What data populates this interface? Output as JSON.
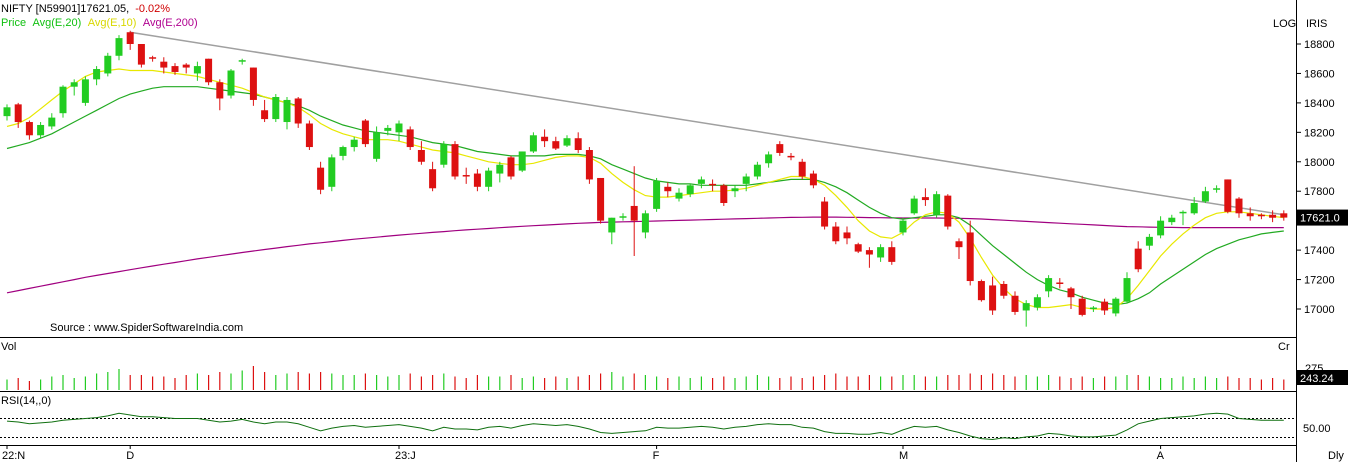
{
  "header": {
    "symbol": "NIFTY [N59901]",
    "last": "17621.05,",
    "change": "-0.02%",
    "legend": [
      {
        "label": "Price",
        "color": "#10c010"
      },
      {
        "label": "Avg(E,20)",
        "color": "#10c010"
      },
      {
        "label": "Avg(E,10)",
        "color": "#e8e800"
      },
      {
        "label": "Avg(E,200)",
        "color": "#b00090"
      }
    ],
    "log_label": "LOG",
    "iris_label": "IRIS"
  },
  "source": "Source : www.SpiderSoftwareIndia.com",
  "panels": {
    "vol_label": "Vol",
    "vol_unit": "Cr",
    "vol_value": "243.24",
    "vol_tick": "275",
    "rsi_label": "RSI(14,,0)",
    "rsi_tick": "50.00"
  },
  "price_axis": {
    "ticks": [
      "18800",
      "18600",
      "18400",
      "18200",
      "18000",
      "17800",
      "17621.0",
      "17400",
      "17200",
      "17000"
    ]
  },
  "x_axis": {
    "labels": [
      "22:N",
      "D",
      "23:J",
      "F",
      "M",
      "A"
    ],
    "period_label": "Dly"
  },
  "colors": {
    "up": "#22cc22",
    "down": "#dd1111",
    "ema20": "#22aa22",
    "ema10": "#e8e800",
    "ema200": "#a00080",
    "trendline": "#a0a0a0",
    "rsi": "#107010"
  },
  "chart_data": {
    "type": "candlestick",
    "ylim": [
      16850,
      18900
    ],
    "candles": [
      [
        18310,
        18390,
        18280,
        18370
      ],
      [
        18390,
        18400,
        18230,
        18270
      ],
      [
        18270,
        18280,
        18150,
        18180
      ],
      [
        18180,
        18270,
        18160,
        18250
      ],
      [
        18240,
        18330,
        18220,
        18300
      ],
      [
        18330,
        18520,
        18300,
        18510
      ],
      [
        18510,
        18560,
        18450,
        18540
      ],
      [
        18400,
        18580,
        18380,
        18560
      ],
      [
        18560,
        18650,
        18520,
        18630
      ],
      [
        18600,
        18740,
        18580,
        18720
      ],
      [
        18720,
        18860,
        18690,
        18840
      ],
      [
        18880,
        18890,
        18760,
        18800
      ],
      [
        18800,
        18800,
        18640,
        18660
      ],
      [
        18710,
        18720,
        18680,
        18700
      ],
      [
        18680,
        18710,
        18600,
        18640
      ],
      [
        18650,
        18670,
        18590,
        18610
      ],
      [
        18660,
        18670,
        18600,
        18640
      ],
      [
        18600,
        18680,
        18550,
        18650
      ],
      [
        18700,
        18700,
        18520,
        18540
      ],
      [
        18540,
        18560,
        18350,
        18430
      ],
      [
        18450,
        18630,
        18430,
        18620
      ],
      [
        18680,
        18700,
        18660,
        18690
      ],
      [
        18640,
        18640,
        18380,
        18420
      ],
      [
        18350,
        18420,
        18270,
        18290
      ],
      [
        18290,
        18460,
        18270,
        18440
      ],
      [
        18270,
        18440,
        18220,
        18420
      ],
      [
        18430,
        18440,
        18230,
        18260
      ],
      [
        18260,
        18280,
        18080,
        18100
      ],
      [
        17960,
        18000,
        17780,
        17810
      ],
      [
        17830,
        18050,
        17800,
        18030
      ],
      [
        18040,
        18110,
        18010,
        18100
      ],
      [
        18100,
        18170,
        18070,
        18150
      ],
      [
        18280,
        18290,
        18100,
        18120
      ],
      [
        18020,
        18240,
        18000,
        18200
      ],
      [
        18210,
        18250,
        18180,
        18230
      ],
      [
        18200,
        18280,
        18140,
        18260
      ],
      [
        18220,
        18240,
        18080,
        18100
      ],
      [
        18080,
        18140,
        17980,
        18000
      ],
      [
        17950,
        18000,
        17800,
        17820
      ],
      [
        17980,
        18140,
        17960,
        18120
      ],
      [
        18120,
        18140,
        17880,
        17900
      ],
      [
        17910,
        17960,
        17850,
        17900
      ],
      [
        17920,
        17950,
        17800,
        17830
      ],
      [
        17830,
        17960,
        17800,
        17940
      ],
      [
        17920,
        18000,
        17860,
        17980
      ],
      [
        18030,
        18040,
        17880,
        17900
      ],
      [
        17940,
        18070,
        17930,
        18070
      ],
      [
        18070,
        18200,
        18060,
        18180
      ],
      [
        18170,
        18220,
        18100,
        18140
      ],
      [
        18140,
        18170,
        18080,
        18090
      ],
      [
        18110,
        18180,
        18100,
        18160
      ],
      [
        18160,
        18200,
        18060,
        18080
      ],
      [
        18080,
        18100,
        17850,
        17880
      ],
      [
        17890,
        17890,
        17580,
        17600
      ],
      [
        17520,
        17620,
        17440,
        17620
      ],
      [
        17620,
        17650,
        17600,
        17630
      ],
      [
        17700,
        17970,
        17360,
        17600
      ],
      [
        17520,
        17670,
        17480,
        17650
      ],
      [
        17680,
        17890,
        17660,
        17870
      ],
      [
        17830,
        17860,
        17760,
        17800
      ],
      [
        17750,
        17820,
        17730,
        17790
      ],
      [
        17780,
        17850,
        17760,
        17840
      ],
      [
        17850,
        17900,
        17820,
        17880
      ],
      [
        17850,
        17880,
        17800,
        17840
      ],
      [
        17840,
        17850,
        17700,
        17720
      ],
      [
        17800,
        17840,
        17760,
        17820
      ],
      [
        17850,
        17920,
        17800,
        17900
      ],
      [
        17900,
        18000,
        17880,
        17980
      ],
      [
        17990,
        18070,
        17960,
        18050
      ],
      [
        18120,
        18140,
        18040,
        18060
      ],
      [
        18040,
        18060,
        18010,
        18030
      ],
      [
        18000,
        18020,
        17880,
        17900
      ],
      [
        17920,
        17940,
        17820,
        17840
      ],
      [
        17730,
        17760,
        17540,
        17560
      ],
      [
        17560,
        17590,
        17440,
        17460
      ],
      [
        17520,
        17560,
        17440,
        17480
      ],
      [
        17440,
        17450,
        17380,
        17390
      ],
      [
        17400,
        17420,
        17280,
        17370
      ],
      [
        17350,
        17440,
        17320,
        17420
      ],
      [
        17420,
        17460,
        17300,
        17320
      ],
      [
        17520,
        17620,
        17500,
        17600
      ],
      [
        17650,
        17770,
        17640,
        17750
      ],
      [
        17760,
        17820,
        17700,
        17740
      ],
      [
        17640,
        17800,
        17620,
        17780
      ],
      [
        17770,
        17780,
        17540,
        17560
      ],
      [
        17460,
        17480,
        17340,
        17420
      ],
      [
        17520,
        17600,
        17160,
        17190
      ],
      [
        17190,
        17200,
        17050,
        17060
      ],
      [
        17160,
        17220,
        16960,
        16990
      ],
      [
        17170,
        17190,
        17070,
        17090
      ],
      [
        17090,
        17120,
        16960,
        16980
      ],
      [
        16990,
        17060,
        16880,
        17040
      ],
      [
        17010,
        17100,
        16990,
        17080
      ],
      [
        17120,
        17230,
        17080,
        17210
      ],
      [
        17180,
        17210,
        17140,
        17170
      ],
      [
        17140,
        17150,
        17000,
        17080
      ],
      [
        17070,
        17090,
        16950,
        16960
      ],
      [
        17000,
        17020,
        16980,
        17010
      ],
      [
        17050,
        17070,
        16960,
        16990
      ],
      [
        16970,
        17080,
        16950,
        17070
      ],
      [
        17050,
        17250,
        17040,
        17210
      ],
      [
        17410,
        17460,
        17250,
        17270
      ],
      [
        17430,
        17510,
        17400,
        17490
      ],
      [
        17500,
        17630,
        17480,
        17600
      ],
      [
        17590,
        17640,
        17570,
        17620
      ],
      [
        17660,
        17670,
        17570,
        17660
      ],
      [
        17650,
        17760,
        17640,
        17720
      ],
      [
        17730,
        17830,
        17720,
        17800
      ],
      [
        17810,
        17840,
        17790,
        17820
      ],
      [
        17880,
        17880,
        17650,
        17660
      ],
      [
        17750,
        17760,
        17620,
        17650
      ],
      [
        17650,
        17690,
        17600,
        17630
      ],
      [
        17640,
        17650,
        17610,
        17630
      ],
      [
        17640,
        17670,
        17590,
        17620
      ],
      [
        17650,
        17670,
        17600,
        17621
      ]
    ],
    "ema10": [
      18240,
      18260,
      18300,
      18360,
      18420,
      18480,
      18530,
      18580,
      18610,
      18620,
      18630,
      18620,
      18620,
      18620,
      18610,
      18600,
      18590,
      18580,
      18560,
      18540,
      18520,
      18500,
      18470,
      18440,
      18420,
      18400,
      18370,
      18320,
      18260,
      18220,
      18190,
      18170,
      18150,
      18150,
      18150,
      18140,
      18120,
      18100,
      18080,
      18070,
      18060,
      18040,
      18020,
      18000,
      17990,
      17980,
      17980,
      17990,
      18010,
      18030,
      18040,
      18040,
      18030,
      17990,
      17920,
      17860,
      17810,
      17770,
      17760,
      17760,
      17770,
      17780,
      17790,
      17800,
      17800,
      17810,
      17820,
      17840,
      17860,
      17880,
      17900,
      17900,
      17880,
      17840,
      17770,
      17690,
      17600,
      17530,
      17490,
      17480,
      17520,
      17590,
      17640,
      17660,
      17650,
      17590,
      17480,
      17350,
      17230,
      17140,
      17070,
      17030,
      17010,
      17010,
      17020,
      17030,
      17010,
      17000,
      17000,
      17010,
      17070,
      17160,
      17260,
      17360,
      17440,
      17510,
      17570,
      17620,
      17650,
      17660,
      17660,
      17650,
      17640,
      17630,
      17621
    ],
    "ema20": [
      18090,
      18110,
      18130,
      18160,
      18190,
      18230,
      18270,
      18310,
      18350,
      18390,
      18430,
      18460,
      18480,
      18500,
      18510,
      18510,
      18510,
      18510,
      18500,
      18490,
      18480,
      18470,
      18460,
      18440,
      18420,
      18400,
      18380,
      18350,
      18310,
      18280,
      18250,
      18230,
      18210,
      18200,
      18190,
      18180,
      18170,
      18150,
      18130,
      18120,
      18110,
      18090,
      18070,
      18060,
      18050,
      18040,
      18040,
      18040,
      18040,
      18050,
      18050,
      18050,
      18040,
      18020,
      17980,
      17950,
      17920,
      17890,
      17870,
      17860,
      17850,
      17850,
      17840,
      17840,
      17840,
      17840,
      17840,
      17850,
      17860,
      17870,
      17880,
      17880,
      17880,
      17860,
      17830,
      17790,
      17740,
      17690,
      17650,
      17620,
      17610,
      17620,
      17630,
      17640,
      17640,
      17620,
      17570,
      17500,
      17430,
      17370,
      17310,
      17250,
      17200,
      17160,
      17130,
      17110,
      17080,
      17060,
      17040,
      17030,
      17040,
      17070,
      17110,
      17170,
      17220,
      17270,
      17320,
      17370,
      17410,
      17440,
      17470,
      17490,
      17510,
      17520,
      17530
    ],
    "ema200": [
      17110,
      17125,
      17140,
      17155,
      17170,
      17185,
      17200,
      17215,
      17228,
      17241,
      17254,
      17267,
      17280,
      17292,
      17304,
      17316,
      17328,
      17340,
      17351,
      17362,
      17373,
      17384,
      17394,
      17404,
      17414,
      17424,
      17433,
      17442,
      17450,
      17458,
      17466,
      17474,
      17481,
      17488,
      17495,
      17502,
      17508,
      17514,
      17520,
      17526,
      17532,
      17537,
      17542,
      17547,
      17552,
      17557,
      17562,
      17566,
      17570,
      17574,
      17578,
      17582,
      17585,
      17588,
      17590,
      17592,
      17594,
      17596,
      17598,
      17600,
      17602,
      17604,
      17606,
      17608,
      17610,
      17612,
      17614,
      17616,
      17618,
      17620,
      17622,
      17623,
      17624,
      17624,
      17624,
      17623,
      17622,
      17621,
      17620,
      17619,
      17618,
      17618,
      17618,
      17618,
      17617,
      17616,
      17614,
      17611,
      17607,
      17603,
      17599,
      17595,
      17591,
      17587,
      17583,
      17579,
      17575,
      17571,
      17567,
      17563,
      17560,
      17558,
      17556,
      17555,
      17554,
      17553,
      17553,
      17553,
      17553,
      17553,
      17553,
      17553,
      17553,
      17553,
      17553
    ],
    "trendline": [
      [
        11,
        18880
      ],
      [
        114,
        17640
      ]
    ],
    "volume": [
      0.35,
      0.4,
      0.3,
      0.35,
      0.45,
      0.5,
      0.4,
      0.45,
      0.55,
      0.6,
      0.7,
      0.5,
      0.5,
      0.45,
      0.45,
      0.4,
      0.5,
      0.55,
      0.5,
      0.6,
      0.55,
      0.65,
      0.8,
      0.6,
      0.5,
      0.55,
      0.6,
      0.55,
      0.6,
      0.55,
      0.5,
      0.5,
      0.55,
      0.5,
      0.45,
      0.5,
      0.55,
      0.45,
      0.5,
      0.55,
      0.45,
      0.4,
      0.5,
      0.45,
      0.45,
      0.5,
      0.4,
      0.45,
      0.4,
      0.45,
      0.4,
      0.45,
      0.5,
      0.55,
      0.6,
      0.45,
      0.55,
      0.5,
      0.45,
      0.4,
      0.45,
      0.4,
      0.45,
      0.4,
      0.45,
      0.4,
      0.45,
      0.5,
      0.45,
      0.4,
      0.45,
      0.4,
      0.45,
      0.5,
      0.55,
      0.45,
      0.45,
      0.5,
      0.45,
      0.45,
      0.5,
      0.5,
      0.45,
      0.45,
      0.5,
      0.5,
      0.55,
      0.5,
      0.55,
      0.5,
      0.45,
      0.5,
      0.45,
      0.5,
      0.45,
      0.4,
      0.45,
      0.4,
      0.45,
      0.45,
      0.5,
      0.5,
      0.45,
      0.4,
      0.4,
      0.45,
      0.4,
      0.45,
      0.4,
      0.45,
      0.4,
      0.4,
      0.35,
      0.4,
      0.35
    ],
    "rsi": [
      55,
      54,
      52,
      53,
      54,
      56,
      57,
      58,
      59,
      61,
      64,
      62,
      60,
      60,
      59,
      58,
      58,
      58,
      56,
      54,
      55,
      57,
      54,
      52,
      54,
      54,
      52,
      48,
      44,
      47,
      49,
      50,
      48,
      49,
      50,
      51,
      49,
      47,
      44,
      48,
      46,
      46,
      45,
      48,
      49,
      47,
      50,
      52,
      51,
      50,
      51,
      49,
      46,
      42,
      41,
      42,
      43,
      44,
      48,
      47,
      47,
      48,
      49,
      48,
      46,
      48,
      49,
      51,
      52,
      51,
      51,
      48,
      47,
      43,
      41,
      41,
      40,
      40,
      42,
      40,
      45,
      49,
      48,
      49,
      45,
      42,
      38,
      35,
      34,
      36,
      35,
      37,
      38,
      41,
      40,
      38,
      37,
      37,
      38,
      39,
      45,
      52,
      55,
      58,
      59,
      60,
      61,
      63,
      64,
      63,
      58,
      57,
      56,
      56,
      56
    ]
  }
}
